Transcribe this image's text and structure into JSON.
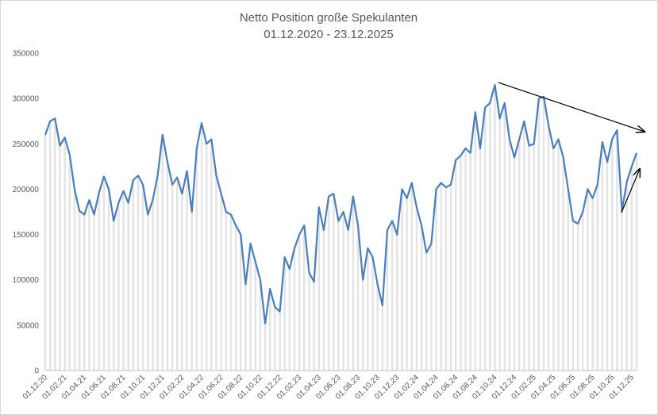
{
  "chart_data": {
    "type": "line",
    "title": "Netto Position  große Spekulanten",
    "subtitle": "01.12.2020 - 23.12.2025",
    "categories": [
      "01.12.20",
      null,
      null,
      null,
      "01.02.21",
      null,
      null,
      null,
      "01.04.21",
      null,
      null,
      null,
      "01.06.21",
      null,
      null,
      null,
      "01.08.21",
      null,
      null,
      null,
      "01.10.21",
      null,
      null,
      null,
      "01.12.21",
      null,
      null,
      null,
      "01.02.22",
      null,
      null,
      null,
      "01.04.22",
      null,
      null,
      null,
      "01.06.22",
      null,
      null,
      null,
      "01.08.22",
      null,
      null,
      null,
      "01.10.22",
      null,
      null,
      null,
      "01.12.22",
      null,
      null,
      null,
      "01.02.23",
      null,
      null,
      null,
      "01.04.23",
      null,
      null,
      null,
      "01.06.23",
      null,
      null,
      null,
      "01.08.23",
      null,
      null,
      null,
      "01.10.23",
      null,
      null,
      null,
      "01.12.23",
      null,
      null,
      null,
      "01.02.24",
      null,
      null,
      null,
      "01.04.24",
      null,
      null,
      null,
      "01.06.24",
      null,
      null,
      null,
      "01.08.24",
      null,
      null,
      null,
      "01.10.24",
      null,
      null,
      null,
      "01.12.24",
      null,
      null,
      null,
      "01.02.25",
      null,
      null,
      null,
      "01.04.25",
      null,
      null,
      null,
      "01.06.25",
      null,
      null,
      null,
      "01.08.25",
      null,
      null,
      null,
      "01.10.25",
      null,
      null,
      null,
      "01.12.25",
      null
    ],
    "values": [
      260000,
      275000,
      278000,
      248000,
      257000,
      238000,
      200000,
      176000,
      172000,
      188000,
      172000,
      196000,
      214000,
      200000,
      165000,
      185000,
      198000,
      185000,
      210000,
      215000,
      205000,
      172000,
      188000,
      215000,
      260000,
      230000,
      205000,
      213000,
      195000,
      220000,
      175000,
      245000,
      273000,
      250000,
      255000,
      215000,
      195000,
      175000,
      172000,
      160000,
      150000,
      95000,
      140000,
      120000,
      100000,
      52000,
      90000,
      70000,
      65000,
      125000,
      112000,
      135000,
      150000,
      160000,
      108000,
      98000,
      180000,
      155000,
      192000,
      195000,
      165000,
      175000,
      155000,
      192000,
      160000,
      100000,
      135000,
      125000,
      95000,
      72000,
      155000,
      165000,
      150000,
      200000,
      190000,
      207000,
      180000,
      160000,
      130000,
      140000,
      200000,
      207000,
      202000,
      205000,
      232000,
      237000,
      245000,
      240000,
      285000,
      245000,
      290000,
      295000,
      315000,
      278000,
      295000,
      255000,
      235000,
      255000,
      275000,
      248000,
      250000,
      300000,
      302000,
      270000,
      245000,
      255000,
      235000,
      200000,
      165000,
      162000,
      175000,
      200000,
      190000,
      205000,
      252000,
      230000,
      255000,
      265000,
      176000,
      208000,
      225000,
      240000
    ],
    "color": "#4a7ebb",
    "ylim": [
      0,
      350000
    ],
    "yticks": [
      0,
      50000,
      100000,
      150000,
      200000,
      250000,
      300000,
      350000
    ]
  }
}
